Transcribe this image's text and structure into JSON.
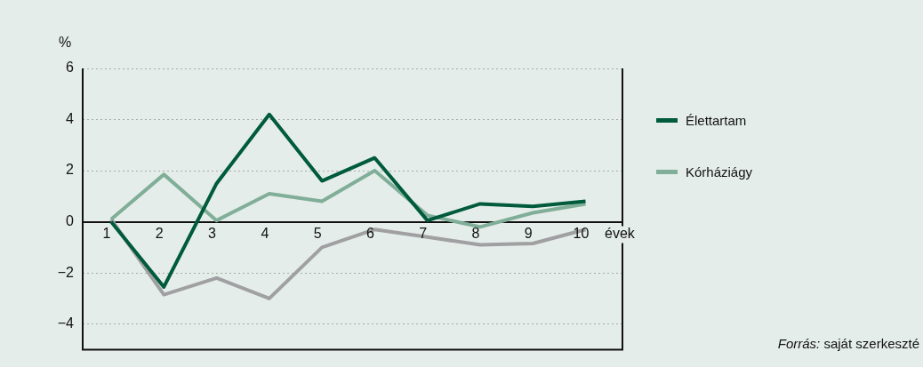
{
  "chart_data": {
    "type": "line",
    "xlabel": "évek",
    "ylabel": "%",
    "x": [
      1,
      2,
      3,
      4,
      5,
      6,
      7,
      8,
      9,
      10
    ],
    "xlim": [
      0.46,
      10.7
    ],
    "xticks": [
      1,
      2,
      3,
      4,
      5,
      6,
      7,
      8,
      9,
      10
    ],
    "ylim": [
      -5,
      6
    ],
    "yticks": [
      {
        "value": -4,
        "label": "−4"
      },
      {
        "value": -2,
        "label": "−2"
      },
      0,
      2,
      4,
      6
    ],
    "series": [
      {
        "name": "Élettartam",
        "color": "#005a3c",
        "values": [
          0,
          -2.55,
          1.5,
          4.2,
          1.6,
          2.5,
          0.05,
          0.7,
          0.6,
          0.8
        ]
      },
      {
        "name": "Kórháziágy",
        "color": "#80ae98",
        "values": [
          0.1,
          1.85,
          0.05,
          1.1,
          0.8,
          2.0,
          0.25,
          -0.2,
          0.35,
          0.7
        ]
      },
      {
        "color": "#a0a0a2",
        "values": [
          0.1,
          -2.85,
          -2.2,
          -3.0,
          -1.0,
          -0.3,
          -0.6,
          -0.9,
          -0.85,
          -0.3
        ]
      }
    ],
    "grid": "y",
    "legend": "right",
    "marker": "none",
    "line_style": "solid",
    "annotations": [
      "Forrás: saját szerkeszté"
    ]
  }
}
